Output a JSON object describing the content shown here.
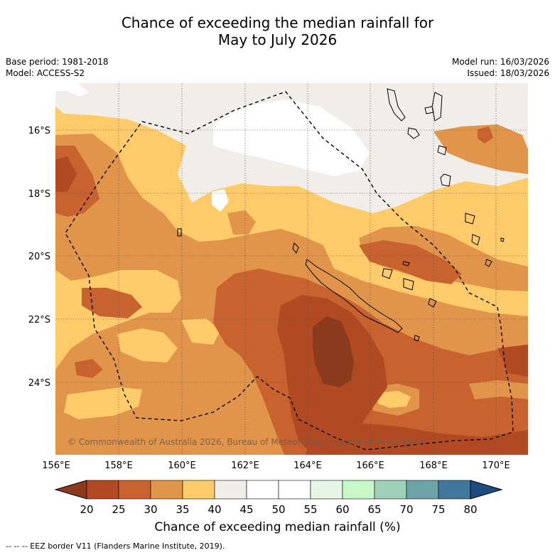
{
  "header": {
    "title_line1": "Chance of exceeding the median rainfall for",
    "title_line2": "May to July 2026",
    "base_period": "Base period: 1981-2018",
    "model": "Model: ACCESS-S2",
    "model_run": "Model run: 16/03/2026",
    "issued": "Issued: 18/03/2026"
  },
  "map": {
    "lat_labels": [
      "16°S",
      "18°S",
      "20°S",
      "22°S",
      "24°S"
    ],
    "lon_labels": [
      "156°E",
      "158°E",
      "160°E",
      "162°E",
      "164°E",
      "166°E",
      "168°E",
      "170°E"
    ],
    "copyright": "© Commonwealth of Australia 2026, Bureau of Meteorology, supported by COSPPac"
  },
  "colorbar": {
    "ticks": [
      "20",
      "25",
      "30",
      "35",
      "40",
      "45",
      "50",
      "55",
      "60",
      "65",
      "70",
      "75",
      "80"
    ],
    "colors": [
      "#8b3a1e",
      "#b14a22",
      "#c8622f",
      "#e0954a",
      "#fdcb6a",
      "#f1ede8",
      "#ffffff",
      "#ffffff",
      "#e6f5e6",
      "#c8f7c8",
      "#9fd0b8",
      "#6ba3a6",
      "#3f789a",
      "#1d4d7e"
    ],
    "label": "Chance of exceeding median rainfall (%)"
  },
  "footnote": "-- -- -- EEZ border V11 (Flanders Marine Institute, 2019)."
}
